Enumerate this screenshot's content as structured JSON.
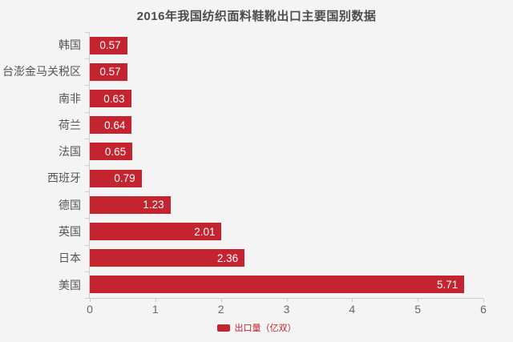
{
  "title": "2016年我国纺织面料鞋靴出口主要国别数据",
  "colors": {
    "bar": "#c3242f",
    "background": "#f5f4f5",
    "axis_line": "#cccccc",
    "title_text": "#4d4d4d",
    "category_text": "#555555",
    "tick_text": "#666666",
    "value_text": "#ffffff",
    "legend_text": "#c3242f"
  },
  "legend": {
    "label": "出口量（亿双）"
  },
  "chart_data": {
    "type": "bar",
    "orientation": "horizontal",
    "title": "2016年我国纺织面料鞋靴出口主要国别数据",
    "categories": [
      "韩国",
      "台澎金马关税区",
      "南非",
      "荷兰",
      "法国",
      "西班牙",
      "德国",
      "英国",
      "日本",
      "美国"
    ],
    "values": [
      0.57,
      0.57,
      0.63,
      0.64,
      0.65,
      0.79,
      1.23,
      2.01,
      2.36,
      5.71
    ],
    "value_labels": [
      "0.57",
      "0.57",
      "0.63",
      "0.64",
      "0.65",
      "0.79",
      "1.23",
      "2.01",
      "2.36",
      "5.71"
    ],
    "xlabel": "",
    "ylabel": "",
    "xlim": [
      0,
      6
    ],
    "x_ticks": [
      0,
      1,
      2,
      3,
      4,
      5,
      6
    ],
    "grid": false,
    "legend_entries": [
      "出口量（亿双）"
    ],
    "legend_position": "bottom-center",
    "value_label_position": "inside-end"
  }
}
